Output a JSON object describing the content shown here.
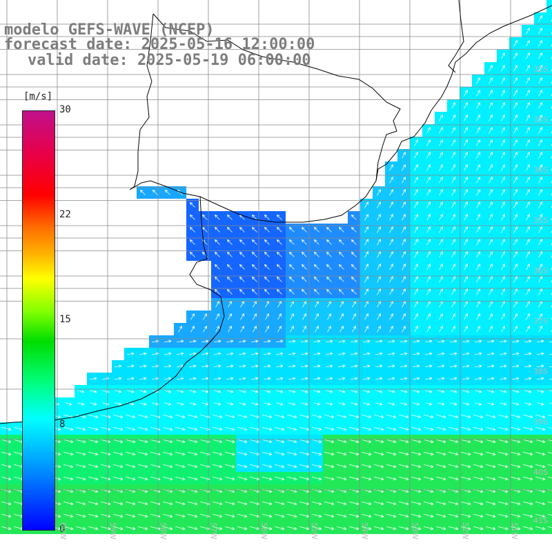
{
  "title": {
    "line1": "modelo GEFS-WAVE (NCEP)",
    "line2": "forecast date: 2025-05-16 12:00:00",
    "line3": "valid date: 2025-05-19 06:00:00"
  },
  "colorbar": {
    "unit": "[m/s]",
    "ticks": [
      "30",
      "22",
      "15",
      "8",
      "0"
    ],
    "tick_values": [
      30,
      22,
      15,
      8,
      0
    ]
  },
  "latitude_labels": [
    "32S",
    "33S",
    "34S",
    "35S",
    "36S",
    "37S",
    "38S",
    "39S",
    "40S",
    "41S"
  ],
  "longitude_labels": [
    "60W",
    "59W",
    "58W",
    "57W",
    "56W",
    "55W",
    "54W",
    "53W",
    "52W",
    "51W"
  ],
  "colors": {
    "land": "#ffffff",
    "coast": "#000000",
    "grid": "#888888",
    "arrows": "#ffffff",
    "title_text": "#7d7d7d"
  }
}
